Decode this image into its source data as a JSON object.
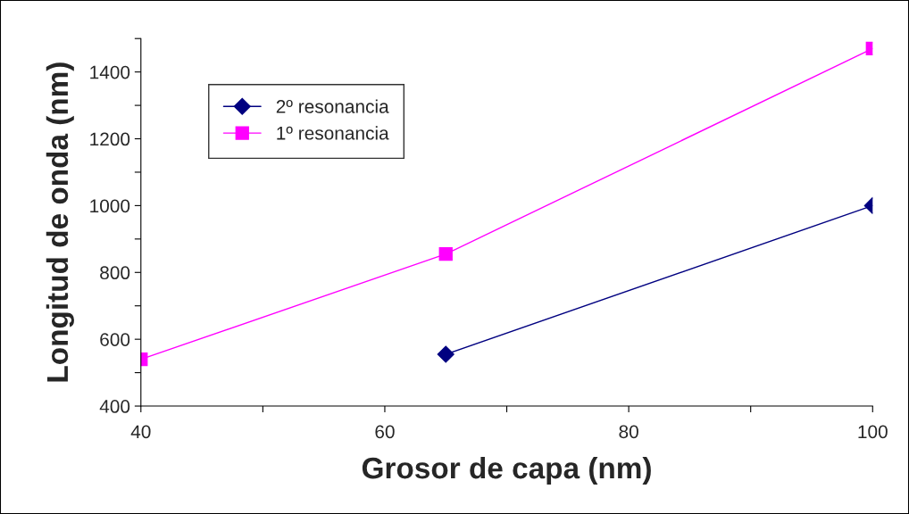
{
  "chart_data": {
    "type": "line",
    "xlabel": "Grosor de capa (nm)",
    "ylabel": "Longitud de onda (nm)",
    "series": [
      {
        "name": "2º resonancia",
        "color": "#000080",
        "marker": "diamond",
        "x": [
          65,
          100
        ],
        "values": [
          555,
          1000
        ]
      },
      {
        "name": "1º resonancia",
        "color": "#ff00ff",
        "marker": "square",
        "x": [
          40,
          65,
          100
        ],
        "values": [
          540,
          855,
          1470
        ]
      }
    ],
    "xlim": [
      40,
      100
    ],
    "xticks": [
      40,
      {
        "value": 50,
        "label": null
      },
      60,
      {
        "value": 70,
        "label": null
      },
      80,
      {
        "value": 90,
        "label": null
      },
      100
    ],
    "ylim": [
      400,
      1500
    ],
    "yticks": [
      400,
      {
        "value": 500,
        "label": null
      },
      600,
      {
        "value": 700,
        "label": null
      },
      800,
      {
        "value": 900,
        "label": null
      },
      1000,
      {
        "value": 1100,
        "label": null
      },
      1200,
      {
        "value": 1300,
        "label": null
      },
      1400,
      {
        "value": 1500,
        "label": null
      }
    ],
    "grid": false,
    "legend": "top left",
    "line_style": "solid"
  }
}
